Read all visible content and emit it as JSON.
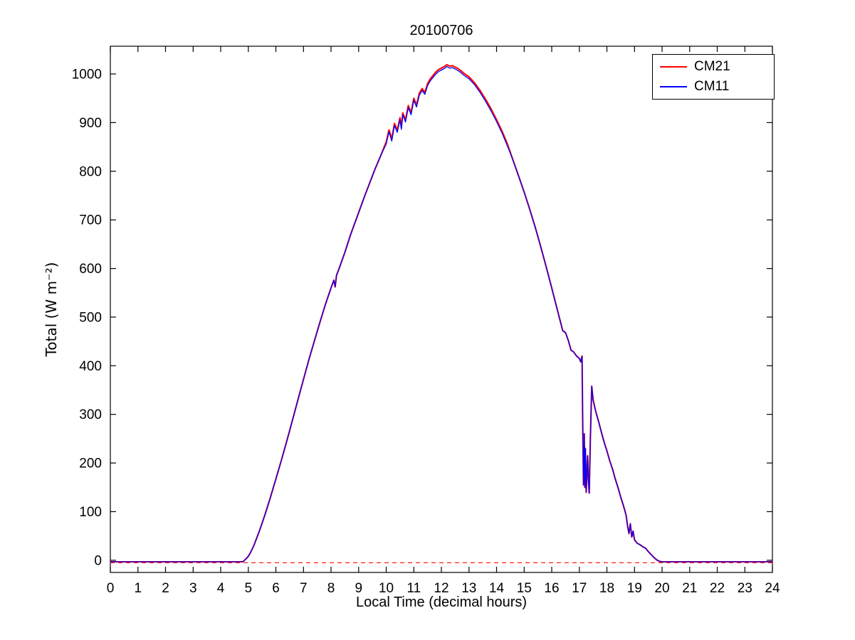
{
  "chart_data": {
    "type": "line",
    "title": "20100706",
    "xlabel": "Local Time (decimal hours)",
    "ylabel": "Total (W m⁻²)",
    "xlim": [
      0,
      24
    ],
    "ylim": [
      -25,
      1057
    ],
    "xticks": [
      0,
      1,
      2,
      3,
      4,
      5,
      6,
      7,
      8,
      9,
      10,
      11,
      12,
      13,
      14,
      15,
      16,
      17,
      18,
      19,
      20,
      21,
      22,
      23,
      24
    ],
    "yticks": [
      0,
      100,
      200,
      300,
      400,
      500,
      600,
      700,
      800,
      900,
      1000
    ],
    "grid": false,
    "legend_position": "top-right",
    "background": "#ffffff",
    "axis_color": "#000000",
    "zero_line": {
      "y": -5,
      "color": "#ff0000",
      "dash": true
    },
    "x": [
      0,
      0.5,
      1,
      1.5,
      2,
      2.5,
      3,
      3.5,
      4,
      4.5,
      4.8,
      4.9,
      5.0,
      5.1,
      5.2,
      5.3,
      5.4,
      5.5,
      5.6,
      5.7,
      5.8,
      5.9,
      6.0,
      6.2,
      6.4,
      6.6,
      6.8,
      7.0,
      7.2,
      7.4,
      7.6,
      7.8,
      8.0,
      8.1,
      8.15,
      8.2,
      8.3,
      8.5,
      8.7,
      9.0,
      9.2,
      9.4,
      9.6,
      9.8,
      10.0,
      10.1,
      10.2,
      10.3,
      10.4,
      10.5,
      10.55,
      10.6,
      10.7,
      10.8,
      10.9,
      11.0,
      11.1,
      11.2,
      11.3,
      11.4,
      11.5,
      11.6,
      11.7,
      11.8,
      11.9,
      12.0,
      12.1,
      12.2,
      12.3,
      12.4,
      12.5,
      12.6,
      12.7,
      12.8,
      13.0,
      13.2,
      13.4,
      13.6,
      13.8,
      14.0,
      14.2,
      14.4,
      14.6,
      14.8,
      15.0,
      15.2,
      15.4,
      15.6,
      15.8,
      16.0,
      16.2,
      16.4,
      16.5,
      16.6,
      16.7,
      16.8,
      16.9,
      17.0,
      17.05,
      17.1,
      17.12,
      17.15,
      17.18,
      17.2,
      17.22,
      17.25,
      17.3,
      17.33,
      17.36,
      17.4,
      17.45,
      17.5,
      17.6,
      17.7,
      17.8,
      17.9,
      18.0,
      18.1,
      18.2,
      18.3,
      18.4,
      18.5,
      18.6,
      18.7,
      18.75,
      18.8,
      18.85,
      18.9,
      18.95,
      19.0,
      19.1,
      19.2,
      19.3,
      19.4,
      19.5,
      19.6,
      19.7,
      19.8,
      19.9,
      20.0,
      20.5,
      21,
      22,
      23,
      24
    ],
    "series": [
      {
        "name": "CM21",
        "color": "#ff0000",
        "values": [
          -3,
          -3,
          -3,
          -3,
          -3,
          -3,
          -3,
          -3,
          -3,
          -3,
          -3,
          2,
          8,
          18,
          30,
          45,
          60,
          76,
          93,
          111,
          129,
          148,
          167,
          206,
          246,
          288,
          330,
          372,
          413,
          452,
          490,
          527,
          560,
          576,
          562,
          586,
          601,
          633,
          668,
          715,
          746,
          776,
          805,
          832,
          860,
          885,
          866,
          898,
          884,
          910,
          890,
          920,
          905,
          935,
          920,
          950,
          936,
          960,
          970,
          962,
          980,
          990,
          997,
          1004,
          1009,
          1012,
          1015,
          1019,
          1016,
          1017,
          1014,
          1011,
          1007,
          1002,
          994,
          982,
          966,
          948,
          928,
          906,
          882,
          855,
          822,
          790,
          757,
          722,
          685,
          645,
          603,
          560,
          516,
          472,
          468,
          452,
          432,
          428,
          420,
          415,
          408,
          420,
          300,
          155,
          260,
          150,
          230,
          140,
          215,
          165,
          138,
          250,
          358,
          330,
          305,
          285,
          263,
          243,
          225,
          205,
          188,
          168,
          150,
          130,
          112,
          92,
          70,
          55,
          75,
          48,
          60,
          42,
          35,
          32,
          28,
          25,
          18,
          12,
          6,
          1,
          -2,
          -3,
          -3,
          -3,
          -3,
          -3,
          -3
        ]
      },
      {
        "name": "CM11",
        "color": "#0000ff",
        "values": [
          -3,
          -3,
          -3,
          -3,
          -3,
          -3,
          -3,
          -3,
          -3,
          -3,
          -3,
          2,
          8,
          18,
          30,
          45,
          60,
          76,
          93,
          111,
          129,
          148,
          167,
          206,
          246,
          288,
          330,
          372,
          413,
          452,
          490,
          527,
          560,
          576,
          562,
          586,
          601,
          633,
          668,
          715,
          746,
          776,
          805,
          832,
          856,
          881,
          862,
          894,
          880,
          906,
          886,
          916,
          901,
          931,
          916,
          946,
          932,
          956,
          966,
          958,
          976,
          986,
          993,
          1000,
          1005,
          1008,
          1011,
          1015,
          1012,
          1013,
          1010,
          1007,
          1003,
          998,
          990,
          978,
          962,
          944,
          924,
          902,
          878,
          851,
          822,
          790,
          757,
          722,
          685,
          645,
          603,
          560,
          516,
          472,
          468,
          452,
          432,
          428,
          420,
          415,
          408,
          420,
          300,
          155,
          260,
          150,
          230,
          140,
          215,
          165,
          138,
          250,
          358,
          330,
          305,
          285,
          263,
          243,
          225,
          205,
          188,
          168,
          150,
          130,
          112,
          92,
          70,
          55,
          75,
          48,
          60,
          42,
          35,
          32,
          28,
          25,
          18,
          12,
          6,
          1,
          -2,
          -3,
          -3,
          -3,
          -3,
          -3,
          -3
        ]
      }
    ]
  }
}
